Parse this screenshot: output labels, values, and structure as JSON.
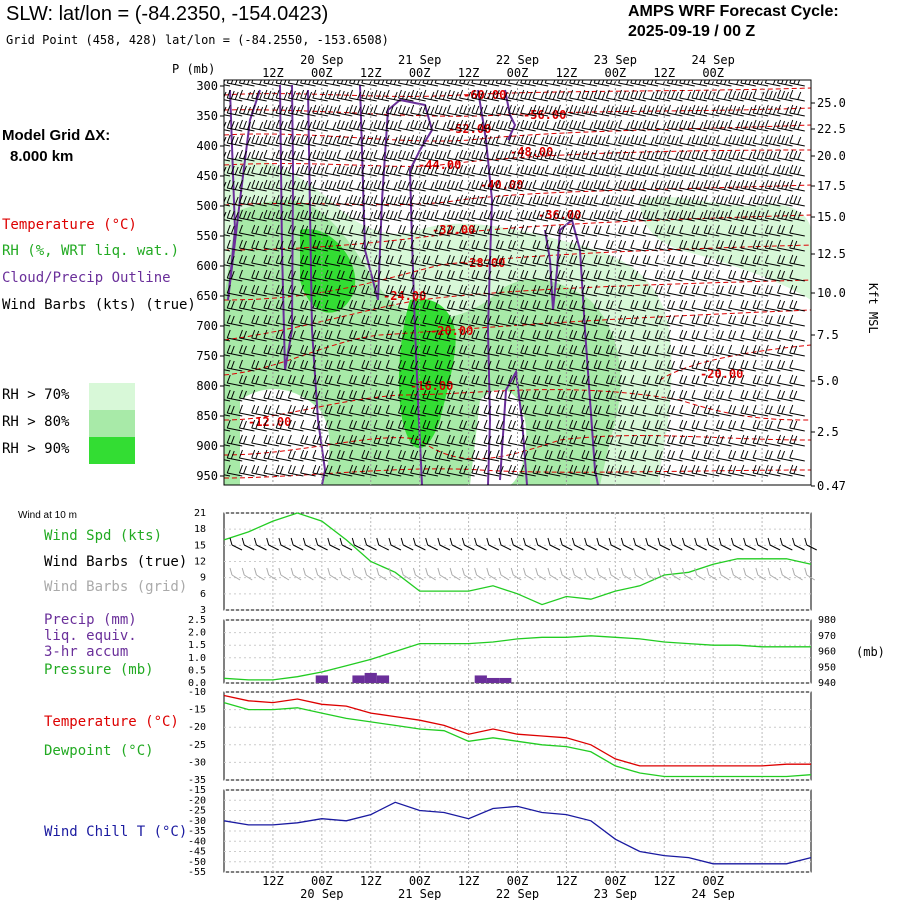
{
  "header": {
    "station_line": "SLW:  lat/lon = (-84.2350, -154.0423)",
    "grid_line": "Grid Point (458, 428) lat/lon = (-84.2550, -153.6508)",
    "forecast_title": "AMPS WRF Forecast Cycle:",
    "forecast_cycle": "2025-09-19 / 00  Z"
  },
  "left_legend": {
    "model_grid_label": "Model Grid ΔX:",
    "model_grid_value": "8.000 km",
    "temperature": "Temperature (°C)",
    "rh": "RH (%, WRT liq. wat.)",
    "cloud": "Cloud/Precip Outline",
    "wind": "Wind Barbs (kts) (true)",
    "rh70": "RH > 70%",
    "rh80": "RH > 80%",
    "rh90": "RH > 90%",
    "colors": {
      "rh70": "#d8f8d8",
      "rh80": "#a8eaa8",
      "rh90": "#33dd33",
      "temperature": "#dd0000",
      "cloud": "#6a2f9a"
    }
  },
  "time_axis": {
    "top_dates": [
      "20 Sep",
      "21 Sep",
      "22 Sep",
      "23 Sep",
      "24 Sep"
    ],
    "hour_labels": [
      "12Z",
      "00Z",
      "12Z",
      "00Z",
      "12Z",
      "00Z",
      "12Z",
      "00Z",
      "12Z",
      "00Z"
    ],
    "bottom_dates": [
      "20 Sep",
      "21 Sep",
      "22 Sep",
      "23 Sep",
      "24 Sep"
    ]
  },
  "cross_section": {
    "p_label": "P (mb)",
    "pressure_ticks": [
      "300",
      "350",
      "400",
      "450",
      "500",
      "550",
      "600",
      "650",
      "700",
      "750",
      "800",
      "850",
      "900",
      "950"
    ],
    "height_ticks": [
      "25.0",
      "22.5",
      "20.0",
      "17.5",
      "15.0",
      "12.5",
      "10.0",
      "7.5",
      "5.0",
      "2.5",
      "0.47"
    ],
    "height_unit": "Kft MSL",
    "isotherm_labels": [
      "-60.00",
      "-56.00",
      "-52.00",
      "-48.00",
      "-44.00",
      "-40.00",
      "-36.00",
      "-32.00",
      "-28.00",
      "-24.00",
      "-20.00",
      "-20.00",
      "-16.00",
      "-12.00"
    ]
  },
  "wind_panel": {
    "title": "Wind at 10 m",
    "spd_label": "Wind Spd (kts)",
    "barbs_true": "Wind Barbs (true)",
    "barbs_grid": "Wind Barbs (grid)",
    "y_ticks": [
      "21",
      "18",
      "15",
      "12",
      "9",
      "6",
      "3"
    ]
  },
  "precip_panel": {
    "precip_label": "Precip (mm)",
    "liq_label": "liq. equiv.",
    "accum_label": "3-hr accum",
    "pressure_label": "Pressure (mb)",
    "left_ticks": [
      "2.5",
      "2.0",
      "1.5",
      "1.0",
      "0.5",
      "0.0"
    ],
    "right_ticks": [
      "980",
      "970",
      "960",
      "950",
      "940"
    ],
    "right_unit": "(mb)"
  },
  "temp_panel": {
    "temp_label": "Temperature (°C)",
    "dew_label": "Dewpoint (°C)",
    "y_ticks": [
      "-10",
      "-15",
      "-20",
      "-25",
      "-30",
      "-35"
    ]
  },
  "chill_panel": {
    "label": "Wind Chill T (°C)",
    "y_ticks": [
      "-15",
      "-20",
      "-25",
      "-30",
      "-35",
      "-40",
      "-45",
      "-50",
      "-55"
    ]
  },
  "chart_data": [
    {
      "type": "line",
      "panel": "wind_speed",
      "x_hours": [
        0,
        6,
        12,
        18,
        24,
        30,
        36,
        42,
        48,
        54,
        60,
        66,
        72,
        78,
        84,
        90,
        96,
        102,
        108,
        114,
        120,
        126,
        132,
        138,
        144
      ],
      "series": [
        {
          "name": "Wind Spd (kts)",
          "values": [
            16,
            17.5,
            19.5,
            21,
            19.5,
            16,
            12,
            10,
            6.5,
            6.5,
            6.5,
            7.5,
            6,
            4,
            5.5,
            5,
            6.5,
            7.5,
            9.5,
            10,
            11.5,
            12.5,
            12.5,
            12.5,
            11.5
          ]
        }
      ],
      "ylim": [
        3,
        21
      ]
    },
    {
      "type": "bar+line",
      "panel": "precip_pressure",
      "x_hours": [
        0,
        6,
        12,
        18,
        24,
        30,
        36,
        42,
        48,
        54,
        60,
        66,
        72,
        78,
        84,
        90,
        96,
        102,
        108,
        114,
        120,
        126,
        132,
        138,
        144
      ],
      "precip_bars": [
        {
          "hour": 24,
          "value": 0.3
        },
        {
          "hour": 33,
          "value": 0.3
        },
        {
          "hour": 36,
          "value": 0.4
        },
        {
          "hour": 39,
          "value": 0.3
        },
        {
          "hour": 63,
          "value": 0.3
        },
        {
          "hour": 66,
          "value": 0.2
        },
        {
          "hour": 69,
          "value": 0.2
        }
      ],
      "series": [
        {
          "name": "Pressure (mb)",
          "values": [
            943,
            942,
            942,
            944,
            947,
            951,
            955,
            960,
            965,
            965,
            965,
            966,
            968,
            969,
            969,
            970,
            969,
            968,
            966,
            965,
            964,
            964,
            963,
            963,
            963
          ]
        }
      ],
      "precip_ylim": [
        0,
        2.5
      ],
      "pressure_ylim": [
        940,
        980
      ]
    },
    {
      "type": "line",
      "panel": "temperature",
      "x_hours": [
        0,
        6,
        12,
        18,
        24,
        30,
        36,
        42,
        48,
        54,
        60,
        66,
        72,
        78,
        84,
        90,
        96,
        102,
        108,
        114,
        120,
        126,
        132,
        138,
        144
      ],
      "series": [
        {
          "name": "Temperature (°C)",
          "values": [
            -11,
            -12.5,
            -13,
            -12,
            -13.5,
            -14,
            -16,
            -17,
            -18,
            -19.5,
            -22,
            -20.5,
            -22,
            -22.5,
            -23,
            -25,
            -29,
            -31,
            -31,
            -31,
            -31,
            -31,
            -31,
            -30.5,
            -30.5
          ]
        },
        {
          "name": "Dewpoint (°C)",
          "values": [
            -13,
            -15,
            -15,
            -14.5,
            -16,
            -17.5,
            -18.5,
            -19.5,
            -20.5,
            -21,
            -24,
            -23,
            -24,
            -25,
            -25.5,
            -27,
            -31,
            -33,
            -34,
            -34,
            -34,
            -34,
            -34,
            -34,
            -33.5
          ]
        }
      ],
      "ylim": [
        -35,
        -10
      ]
    },
    {
      "type": "line",
      "panel": "wind_chill",
      "x_hours": [
        0,
        6,
        12,
        18,
        24,
        30,
        36,
        42,
        48,
        54,
        60,
        66,
        72,
        78,
        84,
        90,
        96,
        102,
        108,
        114,
        120,
        126,
        132,
        138,
        144
      ],
      "series": [
        {
          "name": "Wind Chill T (°C)",
          "values": [
            -30,
            -32,
            -32,
            -31,
            -29,
            -30,
            -27,
            -21,
            -25,
            -26,
            -29,
            -24,
            -23,
            -26,
            -27,
            -30,
            -39,
            -45,
            -47,
            -48,
            -51,
            -51,
            -51,
            -51,
            -48
          ]
        }
      ],
      "ylim": [
        -55,
        -15
      ]
    }
  ]
}
